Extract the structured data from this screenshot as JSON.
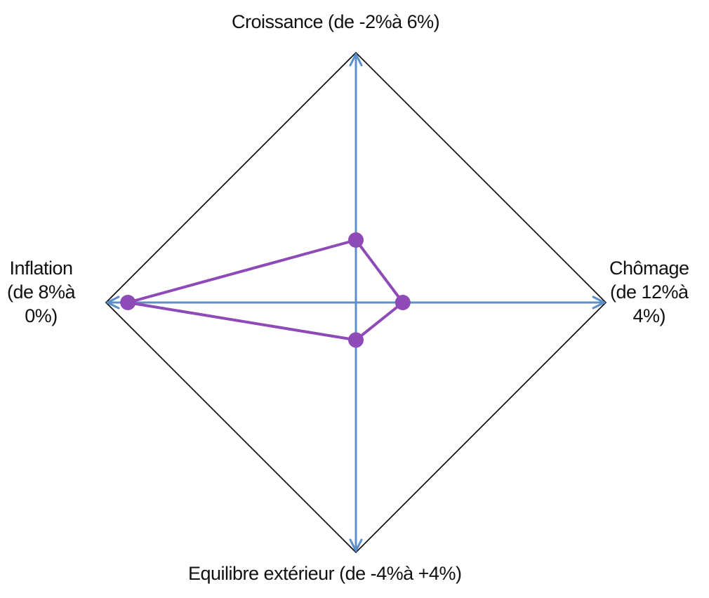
{
  "chart_data": {
    "type": "radar",
    "title": "",
    "axes": [
      {
        "key": "croissance",
        "direction": "up",
        "label_lines": [
          "Croissance (de -2%à 6%)"
        ],
        "range": [
          -2,
          6
        ],
        "unit": "%"
      },
      {
        "key": "chomage",
        "direction": "right",
        "label_lines": [
          "Chômage",
          "(de 12%à",
          "4%)"
        ],
        "range": [
          12,
          4
        ],
        "unit": "%"
      },
      {
        "key": "equilibre",
        "direction": "down",
        "label_lines": [
          "Equilibre extérieur (de -4%à +4%)"
        ],
        "range": [
          -4,
          4
        ],
        "unit": "%"
      },
      {
        "key": "inflation",
        "direction": "left",
        "label_lines": [
          "Inflation",
          "(de 8%à",
          "0%)"
        ],
        "range": [
          8,
          0
        ],
        "unit": "%"
      }
    ],
    "series": [
      {
        "values": {
          "croissance": 0.0,
          "chomage": 10.5,
          "equilibre": -2.8,
          "inflation": 0.7
        },
        "color": "#8e4bb8"
      }
    ],
    "colors": {
      "axis": "#5b8fc9",
      "frame": "#000000",
      "series": "#8e4bb8"
    },
    "grid": false,
    "legend": "none"
  }
}
